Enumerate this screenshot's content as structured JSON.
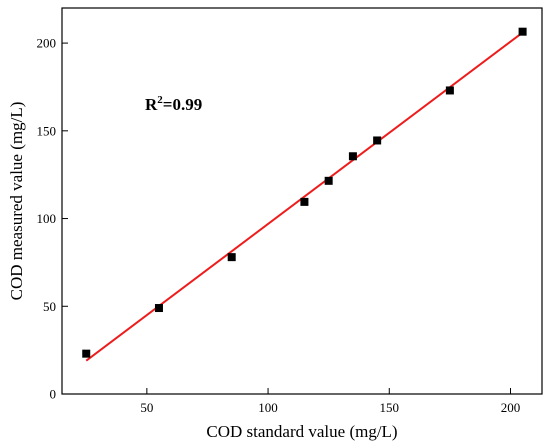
{
  "chart_data": {
    "type": "scatter",
    "title": "",
    "xlabel": "COD standard value (mg/L)",
    "ylabel": "COD measured value (mg/L)",
    "xlim": [
      15,
      213
    ],
    "ylim": [
      0,
      220
    ],
    "xticks": [
      50,
      100,
      150,
      200
    ],
    "yticks": [
      0,
      50,
      100,
      150,
      200
    ],
    "grid": false,
    "series": [
      {
        "marker": "square",
        "color": "#000000",
        "x": [
          25,
          55,
          85,
          115,
          125,
          135,
          145,
          175,
          205
        ],
        "y": [
          23,
          49,
          78,
          109.5,
          121.5,
          135.5,
          144.5,
          173,
          206.5
        ]
      }
    ],
    "fit_line": {
      "color": "#ee1c1c",
      "x": [
        25,
        205
      ],
      "y": [
        19,
        206
      ]
    },
    "annotation": {
      "base": "R",
      "sup": "2",
      "rest": "=0.99"
    }
  }
}
